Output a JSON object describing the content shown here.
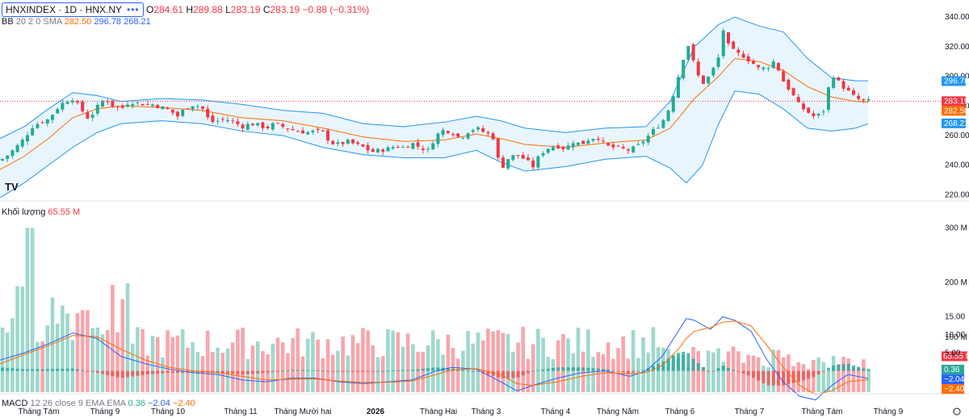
{
  "header": {
    "symbol": "HNXINDEX · 1D · HNX.NY",
    "menu_dots": "•••",
    "o_label": "O",
    "o_value": "284.61",
    "h_label": "H",
    "h_value": "289.88",
    "l_label": "L",
    "l_value": "283.19",
    "c_label": "C",
    "c_value": "283.19",
    "change": "−0.88 (−0.31%)"
  },
  "bb_legend": {
    "name": "BB",
    "params": "20 2 0 SMA",
    "basis": "282.50",
    "upper": "296.78",
    "lower": "268.21"
  },
  "volume_legend": {
    "name": "Khối lượng",
    "value": "65.55 M"
  },
  "macd_legend": {
    "name": "MACD",
    "params": "12 26 close 9 EMA EMA",
    "hist": "0.36",
    "macd": "−2.04",
    "signal": "−2.40"
  },
  "tv_logo": "TV",
  "colors": {
    "up": "#22ab94",
    "down": "#f23645",
    "vol_up": "#9fd8cc",
    "vol_down": "#f7a6ac",
    "bb_band": "#2196f3",
    "bb_basis": "#ff6d00",
    "bb_fill": "#e3f2fd",
    "macd": "#2962ff",
    "signal": "#ff6d00"
  },
  "chart_data": [
    {
      "type": "candlestick",
      "panel": "price",
      "y_axis_ticks": [
        "340.00",
        "320.00",
        "300.00",
        "280.00",
        "260.00",
        "240.00",
        "220.00"
      ],
      "ylim": [
        218,
        345
      ],
      "x_axis_labels": [
        "Tháng Tám",
        "Tháng 9",
        "Tháng 10",
        "Tháng 11",
        "Tháng Mười hai",
        "2026",
        "Tháng Hai",
        "Tháng 3",
        "Tháng 4",
        "Tháng Năm",
        "Tháng 6",
        "Tháng 7",
        "Tháng Tám",
        "Tháng 9"
      ],
      "price_tags": {
        "upper": "296.78",
        "last": "283.19",
        "basis": "282.50",
        "lower": "268.21"
      },
      "close_path": [
        [
          0,
          243
        ],
        [
          10,
          247
        ],
        [
          20,
          252
        ],
        [
          30,
          258
        ],
        [
          40,
          266
        ],
        [
          50,
          269
        ],
        [
          60,
          271
        ],
        [
          70,
          278
        ],
        [
          80,
          283
        ],
        [
          90,
          285
        ],
        [
          100,
          278
        ],
        [
          110,
          271
        ],
        [
          120,
          279
        ],
        [
          130,
          285
        ],
        [
          140,
          280
        ],
        [
          150,
          278
        ],
        [
          160,
          283
        ],
        [
          170,
          282
        ],
        [
          180,
          281
        ],
        [
          190,
          281
        ],
        [
          200,
          279
        ],
        [
          210,
          277
        ],
        [
          220,
          273
        ],
        [
          230,
          279
        ],
        [
          240,
          281
        ],
        [
          250,
          279
        ],
        [
          260,
          269
        ],
        [
          270,
          270
        ],
        [
          280,
          271
        ],
        [
          290,
          269
        ],
        [
          300,
          266
        ],
        [
          310,
          268
        ],
        [
          320,
          267
        ],
        [
          330,
          265
        ],
        [
          340,
          268
        ],
        [
          350,
          266
        ],
        [
          360,
          264
        ],
        [
          370,
          263
        ],
        [
          380,
          262
        ],
        [
          390,
          263
        ],
        [
          400,
          262
        ],
        [
          410,
          255
        ],
        [
          420,
          254
        ],
        [
          430,
          256
        ],
        [
          440,
          254
        ],
        [
          450,
          252
        ],
        [
          460,
          249
        ],
        [
          470,
          250
        ],
        [
          480,
          251
        ],
        [
          490,
          253
        ],
        [
          500,
          252
        ],
        [
          510,
          255
        ],
        [
          520,
          252
        ],
        [
          530,
          250
        ],
        [
          540,
          260
        ],
        [
          550,
          264
        ],
        [
          560,
          262
        ],
        [
          570,
          258
        ],
        [
          580,
          263
        ],
        [
          590,
          265
        ],
        [
          600,
          262
        ],
        [
          610,
          260
        ],
        [
          620,
          237
        ],
        [
          630,
          245
        ],
        [
          640,
          247
        ],
        [
          650,
          244
        ],
        [
          660,
          239
        ],
        [
          670,
          248
        ],
        [
          680,
          252
        ],
        [
          690,
          253
        ],
        [
          700,
          251
        ],
        [
          710,
          256
        ],
        [
          720,
          254
        ],
        [
          730,
          258
        ],
        [
          740,
          259
        ],
        [
          750,
          253
        ],
        [
          760,
          252
        ],
        [
          770,
          251
        ],
        [
          780,
          250
        ],
        [
          790,
          253
        ],
        [
          800,
          258
        ],
        [
          810,
          264
        ],
        [
          820,
          269
        ],
        [
          830,
          280
        ],
        [
          840,
          300
        ],
        [
          850,
          320
        ],
        [
          855,
          322
        ],
        [
          860,
          305
        ],
        [
          870,
          295
        ],
        [
          880,
          301
        ],
        [
          890,
          313
        ],
        [
          895,
          333
        ],
        [
          900,
          322
        ],
        [
          910,
          316
        ],
        [
          920,
          314
        ],
        [
          930,
          310
        ],
        [
          940,
          305
        ],
        [
          950,
          306
        ],
        [
          960,
          311
        ],
        [
          965,
          303
        ],
        [
          970,
          297
        ],
        [
          980,
          289
        ],
        [
          990,
          280
        ],
        [
          1000,
          276
        ],
        [
          1010,
          272
        ],
        [
          1020,
          277
        ],
        [
          1030,
          302
        ],
        [
          1040,
          295
        ],
        [
          1050,
          290
        ],
        [
          1060,
          285
        ],
        [
          1070,
          283.19
        ]
      ],
      "bb_upper": [
        [
          0,
          258
        ],
        [
          30,
          266
        ],
        [
          60,
          278
        ],
        [
          90,
          289
        ],
        [
          120,
          287
        ],
        [
          150,
          283
        ],
        [
          200,
          285
        ],
        [
          250,
          284
        ],
        [
          300,
          281
        ],
        [
          350,
          277
        ],
        [
          400,
          275
        ],
        [
          450,
          268
        ],
        [
          500,
          266
        ],
        [
          550,
          269
        ],
        [
          590,
          273
        ],
        [
          620,
          270
        ],
        [
          650,
          265
        ],
        [
          700,
          262
        ],
        [
          750,
          265
        ],
        [
          800,
          266
        ],
        [
          830,
          283
        ],
        [
          860,
          320
        ],
        [
          890,
          335
        ],
        [
          910,
          340
        ],
        [
          940,
          334
        ],
        [
          970,
          330
        ],
        [
          1000,
          312
        ],
        [
          1030,
          299
        ],
        [
          1060,
          297
        ],
        [
          1075,
          297
        ]
      ],
      "bb_basis": [
        [
          0,
          237
        ],
        [
          30,
          246
        ],
        [
          60,
          258
        ],
        [
          90,
          272
        ],
        [
          120,
          278
        ],
        [
          150,
          280
        ],
        [
          200,
          279
        ],
        [
          250,
          277
        ],
        [
          300,
          272
        ],
        [
          350,
          270
        ],
        [
          400,
          265
        ],
        [
          450,
          259
        ],
        [
          500,
          256
        ],
        [
          550,
          257
        ],
        [
          590,
          261
        ],
        [
          620,
          258
        ],
        [
          650,
          254
        ],
        [
          700,
          252
        ],
        [
          750,
          255
        ],
        [
          800,
          257
        ],
        [
          830,
          265
        ],
        [
          860,
          285
        ],
        [
          890,
          300
        ],
        [
          910,
          312
        ],
        [
          940,
          310
        ],
        [
          970,
          304
        ],
        [
          1000,
          293
        ],
        [
          1030,
          286
        ],
        [
          1060,
          283
        ],
        [
          1075,
          282.5
        ]
      ],
      "bb_lower": [
        [
          0,
          218
        ],
        [
          30,
          228
        ],
        [
          60,
          240
        ],
        [
          90,
          252
        ],
        [
          120,
          262
        ],
        [
          150,
          268
        ],
        [
          200,
          270
        ],
        [
          250,
          268
        ],
        [
          300,
          263
        ],
        [
          350,
          260
        ],
        [
          400,
          252
        ],
        [
          450,
          247
        ],
        [
          500,
          245
        ],
        [
          550,
          245
        ],
        [
          590,
          250
        ],
        [
          620,
          242
        ],
        [
          650,
          236
        ],
        [
          700,
          239
        ],
        [
          750,
          244
        ],
        [
          800,
          246
        ],
        [
          830,
          238
        ],
        [
          850,
          228
        ],
        [
          870,
          240
        ],
        [
          890,
          268
        ],
        [
          910,
          290
        ],
        [
          940,
          288
        ],
        [
          970,
          278
        ],
        [
          1000,
          265
        ],
        [
          1030,
          263
        ],
        [
          1060,
          265
        ],
        [
          1075,
          268
        ]
      ]
    },
    {
      "type": "bar",
      "panel": "volume",
      "name": "Khối lượng",
      "y_axis_ticks": [
        "300 M",
        "200 M",
        "100 M"
      ],
      "ylim": [
        0,
        330
      ],
      "last_value_tag": "65.55 M"
    },
    {
      "type": "line",
      "panel": "macd",
      "name": "MACD",
      "y_axis_ticks": [
        "15.00",
        "10.00",
        "5.00",
        "0.00",
        "-5.00"
      ],
      "ylim": [
        -9,
        16
      ],
      "value_tags": {
        "hist": "0.36",
        "macd": "−2.04",
        "signal": "−2.40"
      },
      "macd_path": [
        [
          0,
          3
        ],
        [
          30,
          5
        ],
        [
          60,
          7.5
        ],
        [
          90,
          10.5
        ],
        [
          120,
          9
        ],
        [
          150,
          4
        ],
        [
          180,
          2
        ],
        [
          210,
          0.5
        ],
        [
          240,
          -0.5
        ],
        [
          270,
          -1
        ],
        [
          300,
          -2.5
        ],
        [
          330,
          -3
        ],
        [
          360,
          -2
        ],
        [
          390,
          -2
        ],
        [
          420,
          -3
        ],
        [
          450,
          -3.5
        ],
        [
          480,
          -3
        ],
        [
          510,
          -2.5
        ],
        [
          540,
          0
        ],
        [
          560,
          1
        ],
        [
          590,
          0.5
        ],
        [
          620,
          -3
        ],
        [
          640,
          -5.5
        ],
        [
          660,
          -4
        ],
        [
          690,
          -2
        ],
        [
          720,
          -0.5
        ],
        [
          750,
          0
        ],
        [
          780,
          -1.5
        ],
        [
          800,
          0
        ],
        [
          820,
          4
        ],
        [
          840,
          11
        ],
        [
          850,
          14.5
        ],
        [
          860,
          14
        ],
        [
          880,
          11.5
        ],
        [
          895,
          15
        ],
        [
          910,
          14
        ],
        [
          930,
          11
        ],
        [
          950,
          3
        ],
        [
          970,
          -3
        ],
        [
          990,
          -7
        ],
        [
          1010,
          -8
        ],
        [
          1030,
          -4
        ],
        [
          1050,
          -1
        ],
        [
          1075,
          -2.04
        ]
      ],
      "signal_path": [
        [
          0,
          2
        ],
        [
          30,
          4.5
        ],
        [
          60,
          7
        ],
        [
          90,
          9.8
        ],
        [
          120,
          9.5
        ],
        [
          150,
          6
        ],
        [
          180,
          3
        ],
        [
          210,
          1
        ],
        [
          240,
          0
        ],
        [
          270,
          -0.5
        ],
        [
          300,
          -1.5
        ],
        [
          330,
          -2.5
        ],
        [
          360,
          -2.3
        ],
        [
          390,
          -2.2
        ],
        [
          420,
          -2.8
        ],
        [
          450,
          -3.2
        ],
        [
          480,
          -3.1
        ],
        [
          510,
          -2.8
        ],
        [
          540,
          -1
        ],
        [
          560,
          0.3
        ],
        [
          590,
          0.6
        ],
        [
          620,
          -1
        ],
        [
          640,
          -3.5
        ],
        [
          660,
          -4
        ],
        [
          690,
          -3
        ],
        [
          720,
          -1.5
        ],
        [
          750,
          -0.5
        ],
        [
          780,
          -0.8
        ],
        [
          800,
          -0.5
        ],
        [
          820,
          1.5
        ],
        [
          840,
          6
        ],
        [
          850,
          9
        ],
        [
          860,
          11
        ],
        [
          880,
          12
        ],
        [
          895,
          13.5
        ],
        [
          910,
          13.8
        ],
        [
          930,
          12.5
        ],
        [
          950,
          7
        ],
        [
          970,
          1
        ],
        [
          990,
          -4
        ],
        [
          1010,
          -6.5
        ],
        [
          1030,
          -5.5
        ],
        [
          1050,
          -3
        ],
        [
          1075,
          -2.4
        ]
      ]
    }
  ]
}
